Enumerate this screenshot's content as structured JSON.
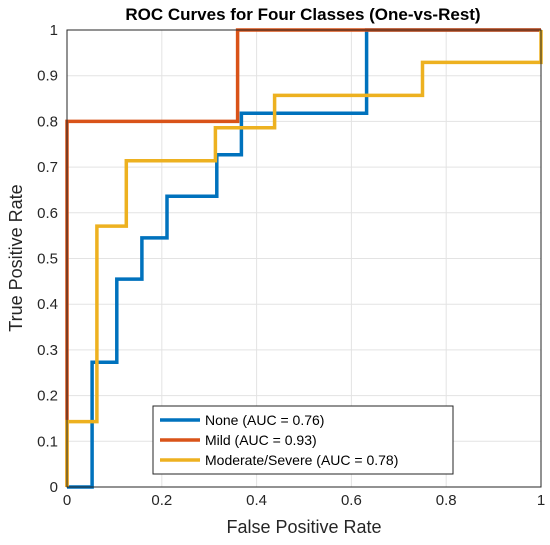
{
  "chart_data": {
    "type": "line",
    "title": "ROC Curves for Four Classes (One-vs-Rest)",
    "xlabel": "False Positive Rate",
    "ylabel": "True Positive Rate",
    "xlim": [
      0,
      1
    ],
    "ylim": [
      0,
      1
    ],
    "grid": true,
    "legend_position": "bottom-center",
    "xticks": [
      "0",
      "0.2",
      "0.4",
      "0.6",
      "0.8",
      "1"
    ],
    "yticks": [
      "0",
      "0.1",
      "0.2",
      "0.3",
      "0.4",
      "0.5",
      "0.6",
      "0.7",
      "0.8",
      "0.9",
      "1"
    ],
    "series": [
      {
        "name": "None (AUC = 0.76)",
        "color": "#0072BD",
        "x": [
          0,
          0.053,
          0.053,
          0.105,
          0.105,
          0.158,
          0.158,
          0.211,
          0.211,
          0.316,
          0.316,
          0.368,
          0.368,
          0.632,
          0.632,
          1
        ],
        "y": [
          0,
          0,
          0.273,
          0.273,
          0.455,
          0.455,
          0.545,
          0.545,
          0.636,
          0.636,
          0.727,
          0.727,
          0.818,
          0.818,
          1,
          1
        ]
      },
      {
        "name": "Mild (AUC = 0.93)",
        "color": "#D95319",
        "x": [
          0,
          0,
          0,
          0.36,
          0.36,
          1
        ],
        "y": [
          0,
          0.15,
          0.8,
          0.8,
          1,
          1
        ]
      },
      {
        "name": "Moderate/Severe (AUC = 0.78)",
        "color": "#EDB120",
        "x": [
          0,
          0,
          0.063,
          0.063,
          0.125,
          0.125,
          0.313,
          0.313,
          0.438,
          0.438,
          0.75,
          0.75,
          1,
          1
        ],
        "y": [
          0,
          0.143,
          0.143,
          0.571,
          0.571,
          0.714,
          0.714,
          0.786,
          0.786,
          0.857,
          0.857,
          0.929,
          0.929,
          1
        ]
      }
    ]
  }
}
